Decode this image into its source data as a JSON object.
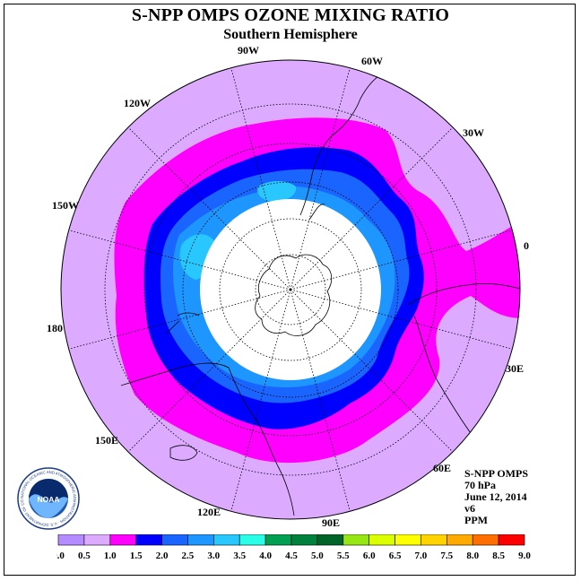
{
  "title": "S-NPP OMPS OZONE MIXING RATIO",
  "subtitle": "Southern Hemisphere",
  "longitude_labels": [
    "90W",
    "60W",
    "30W",
    "0",
    "30E",
    "60E",
    "90E",
    "120E",
    "150E",
    "180",
    "150W",
    "120W"
  ],
  "info": {
    "instrument": "S-NPP OMPS",
    "pressure_level": "70 hPa",
    "date": "June 12, 2014",
    "version": "v6",
    "units": "PPM"
  },
  "logo": {
    "text": "NOAA",
    "ring_text": "NATIONAL OCEANIC AND ATMOSPHERIC ADMINISTRATION · U.S. DEPARTMENT OF COMMERCE"
  },
  "colors": {
    "no_data": "#ffffff",
    "level_0_5_to_1_0": "#dcaaff",
    "level_1_0_to_1_5": "#ff00ff",
    "level_1_5_to_2_0": "#0000ff",
    "level_2_0_to_2_5": "#1a64ff",
    "level_2_5_to_3_0": "#1e96ff",
    "level_3_0_to_3_5": "#28c8ff"
  },
  "colorbar": {
    "ticks": [
      "0.0",
      "0.5",
      "1.0",
      "1.5",
      "2.0",
      "2.5",
      "3.0",
      "3.5",
      "4.0",
      "4.5",
      "5.0",
      "5.5",
      "6.0",
      "6.5",
      "7.0",
      "7.5",
      "8.0",
      "8.5",
      "9.0"
    ],
    "colors": [
      "#b48cff",
      "#dcaaff",
      "#ff00ff",
      "#0000ff",
      "#1a64ff",
      "#1e96ff",
      "#28c8ff",
      "#28ffe6",
      "#00a050",
      "#00823c",
      "#006428",
      "#96e614",
      "#dcff00",
      "#ffff00",
      "#ffd200",
      "#ffaa00",
      "#ff6e00",
      "#ff0000",
      "#b45a3c"
    ]
  }
}
